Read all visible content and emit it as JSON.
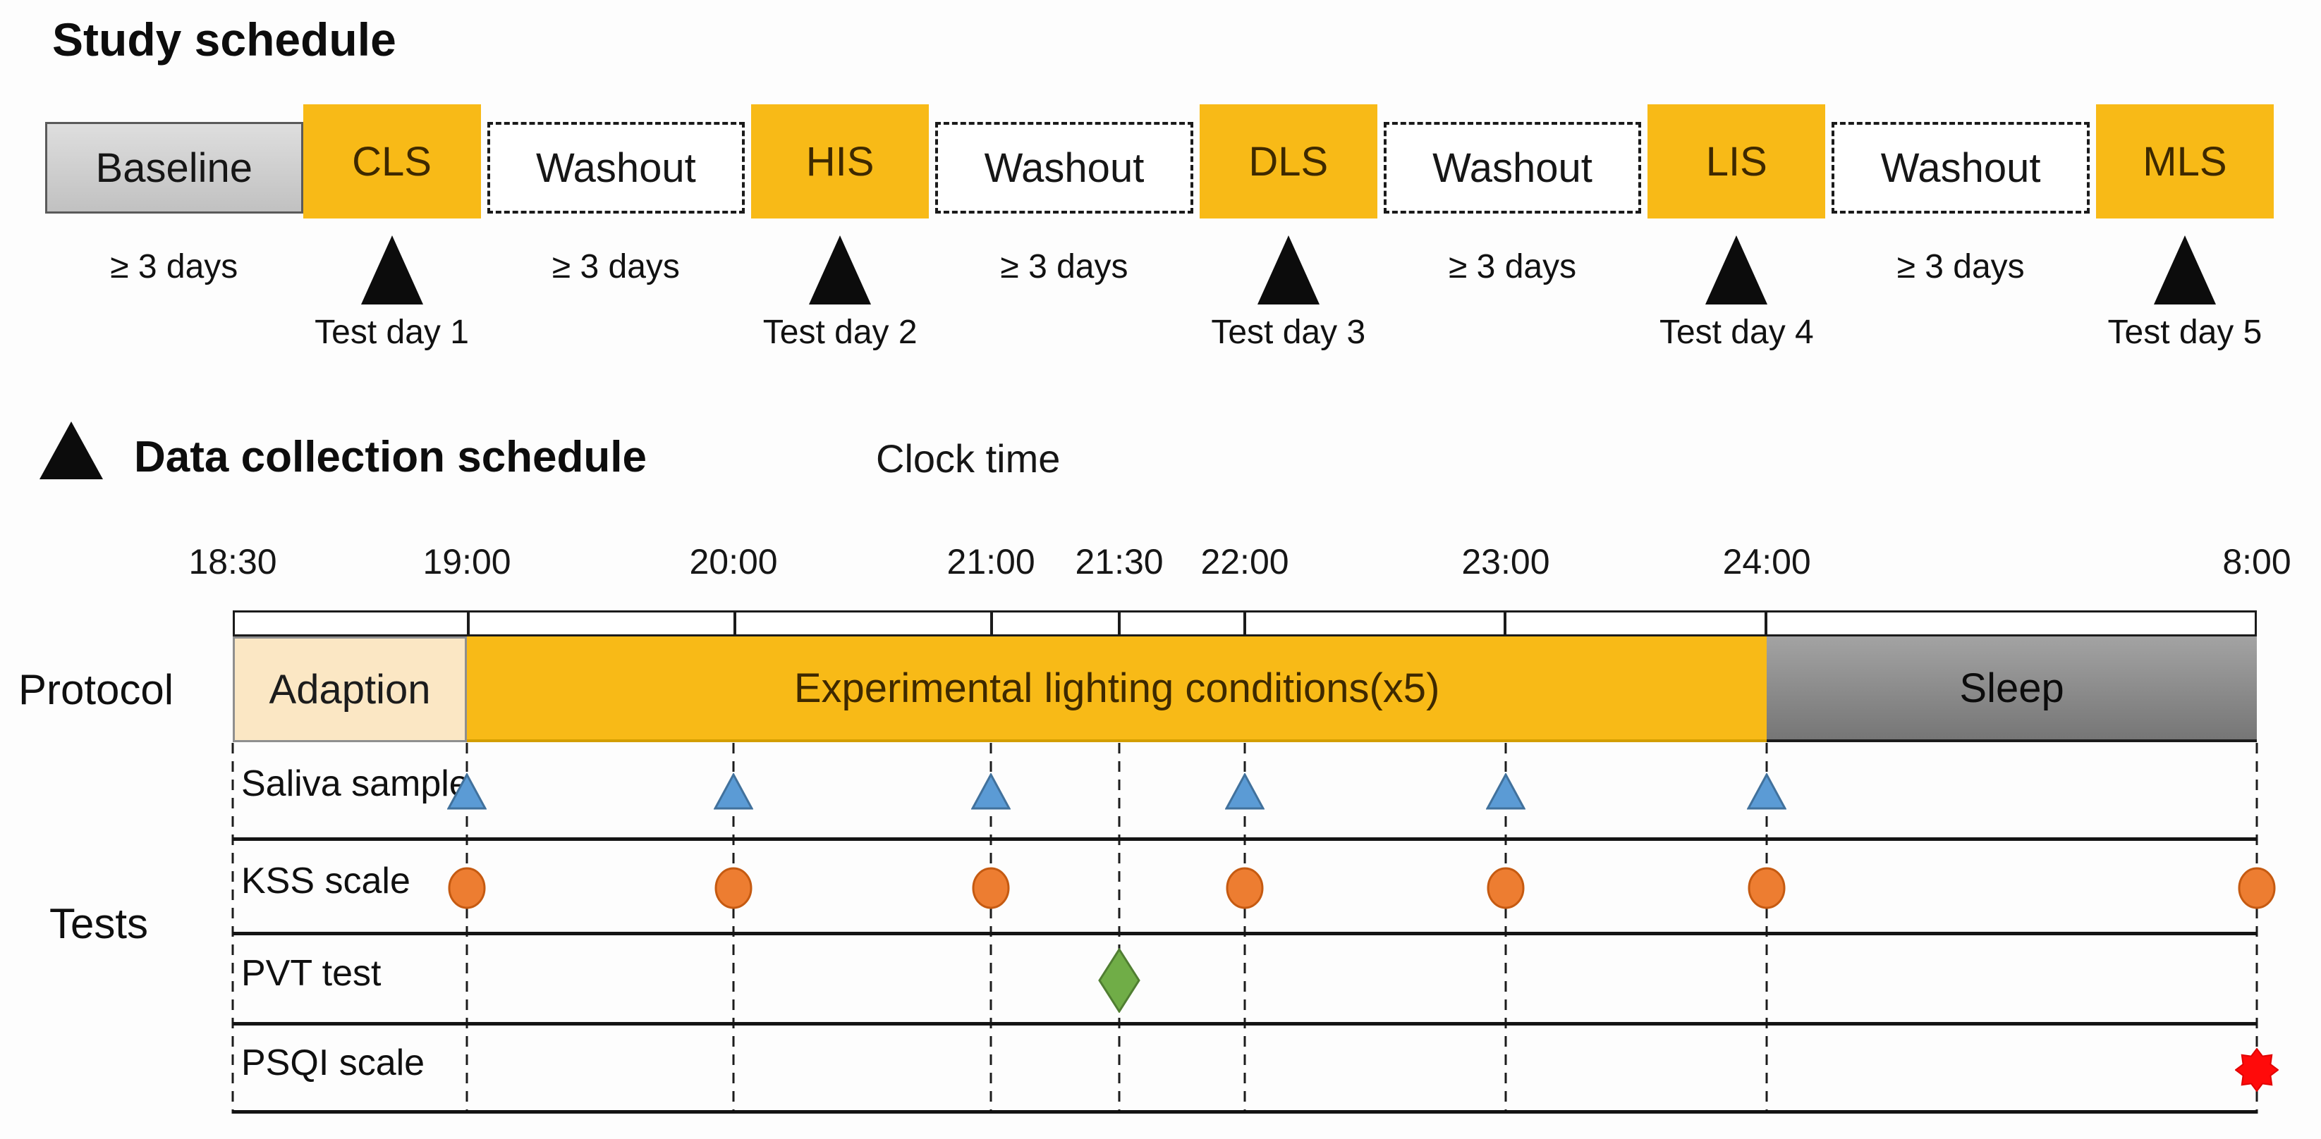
{
  "study": {
    "title": "Study schedule",
    "segments": [
      {
        "type": "baseline",
        "label": "Baseline",
        "sub": "≥ 3 days"
      },
      {
        "type": "session",
        "label": "CLS",
        "sub": "Test day 1"
      },
      {
        "type": "washout",
        "label": "Washout",
        "sub": "≥ 3 days"
      },
      {
        "type": "session",
        "label": "HIS",
        "sub": "Test day 2"
      },
      {
        "type": "washout",
        "label": "Washout",
        "sub": "≥ 3 days"
      },
      {
        "type": "session",
        "label": "DLS",
        "sub": "Test day 3"
      },
      {
        "type": "washout",
        "label": "Washout",
        "sub": "≥ 3 days"
      },
      {
        "type": "session",
        "label": "LIS",
        "sub": "Test day 4"
      },
      {
        "type": "washout",
        "label": "Washout",
        "sub": "≥ 3 days"
      },
      {
        "type": "session",
        "label": "MLS",
        "sub": "Test day 5"
      }
    ]
  },
  "collection": {
    "title": "Data collection schedule",
    "axis_title": "Clock time",
    "protocol_label": "Protocol",
    "tests_label": "Tests"
  },
  "chart_data": {
    "type": "timeline",
    "clock_ticks": [
      {
        "time": "18:30",
        "pos": 0.0
      },
      {
        "time": "19:00",
        "pos": 0.1157
      },
      {
        "time": "20:00",
        "pos": 0.2474
      },
      {
        "time": "21:00",
        "pos": 0.3746
      },
      {
        "time": "21:30",
        "pos": 0.438
      },
      {
        "time": "22:00",
        "pos": 0.5
      },
      {
        "time": "23:00",
        "pos": 0.6289
      },
      {
        "time": "24:00",
        "pos": 0.7579
      },
      {
        "time": "8:00",
        "pos": 1.0
      }
    ],
    "protocol": [
      {
        "kind": "adaption",
        "label": "Adaption",
        "from": "18:30",
        "to": "19:00",
        "fill": "#FBE7C4"
      },
      {
        "kind": "experimental",
        "label": "Experimental lighting conditions(x5)",
        "from": "19:00",
        "to": "24:00",
        "fill": "#F8BA17"
      },
      {
        "kind": "sleep",
        "label": "Sleep",
        "from": "24:00",
        "to": "8:00",
        "fill": "#8E8E8E"
      }
    ],
    "tests": [
      {
        "label": "Saliva sample",
        "marker": "triangle",
        "fill": "#5B9BD5",
        "stroke": "#41719C",
        "times": [
          "19:00",
          "20:00",
          "21:00",
          "22:00",
          "23:00",
          "24:00"
        ]
      },
      {
        "label": "KSS scale",
        "marker": "ellipse",
        "fill": "#ED7D31",
        "stroke": "#C55A11",
        "times": [
          "19:00",
          "20:00",
          "21:00",
          "22:00",
          "23:00",
          "24:00",
          "8:00"
        ]
      },
      {
        "label": "PVT test",
        "marker": "diamond",
        "fill": "#70AD47",
        "stroke": "#507E32",
        "times": [
          "21:30"
        ]
      },
      {
        "label": "PSQI scale",
        "marker": "burst",
        "fill": "#FF0A0A",
        "stroke": "#E00000",
        "times": [
          "8:00"
        ]
      }
    ]
  },
  "palette": {
    "session_gold": "#F8BA17",
    "baseline_gray": "#CFCFCF",
    "sleep_gray": "#8E8E8E",
    "adaption_cream": "#FBE7C4",
    "triangle_black": "#0C0C0C"
  }
}
